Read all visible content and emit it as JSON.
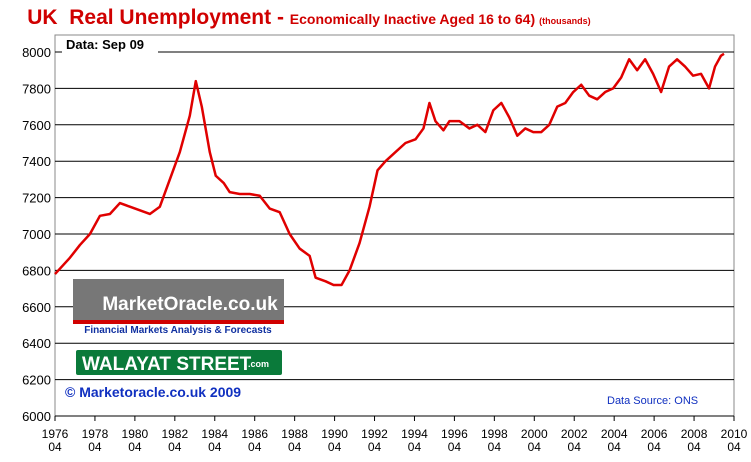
{
  "chart_data": {
    "type": "line",
    "title": "UK  Real Unemployment - ",
    "subtitle": "Economically Inactive Aged 16 to 64)",
    "unit_note": "(thousands)",
    "data_note": "Data: Sep 09",
    "copyright": "© Marketoracle.co.uk 2009",
    "source": "Data Source: ONS",
    "watermarks": [
      "MarketOracle.co.uk",
      "Financial Markets Analysis & Forecasts",
      "WALAYAT STREET",
      ".com"
    ],
    "x": [
      1976.25,
      1977,
      1977.5,
      1978,
      1978.5,
      1979,
      1979.5,
      1980,
      1980.5,
      1981,
      1981.5,
      1982,
      1982.5,
      1983,
      1983.3,
      1983.6,
      1984,
      1984.3,
      1984.7,
      1985,
      1985.5,
      1986,
      1986.5,
      1987,
      1987.5,
      1988,
      1988.5,
      1989,
      1989.3,
      1989.8,
      1990.2,
      1990.6,
      1991,
      1991.5,
      1992,
      1992.4,
      1992.8,
      1993.3,
      1993.8,
      1994.3,
      1994.7,
      1995,
      1995.3,
      1995.7,
      1996,
      1996.5,
      1997,
      1997.4,
      1997.8,
      1998.2,
      1998.6,
      1999,
      1999.4,
      1999.8,
      2000.2,
      2000.6,
      2001,
      2001.4,
      2001.8,
      2002.2,
      2002.6,
      2003,
      2003.4,
      2003.8,
      2004.2,
      2004.6,
      2005,
      2005.4,
      2005.8,
      2006.2,
      2006.6,
      2007,
      2007.4,
      2007.8,
      2008.2,
      2008.6,
      2009,
      2009.3,
      2009.6,
      2009.75
    ],
    "series": [
      {
        "name": "Economically Inactive",
        "color": "#e00000",
        "values": [
          6780,
          6870,
          6940,
          7000,
          7100,
          7110,
          7170,
          7150,
          7130,
          7110,
          7150,
          7300,
          7450,
          7650,
          7840,
          7700,
          7450,
          7320,
          7280,
          7230,
          7220,
          7220,
          7210,
          7140,
          7120,
          7000,
          6920,
          6880,
          6760,
          6740,
          6720,
          6720,
          6800,
          6950,
          7150,
          7350,
          7400,
          7450,
          7500,
          7520,
          7580,
          7720,
          7620,
          7570,
          7620,
          7620,
          7580,
          7600,
          7560,
          7680,
          7720,
          7640,
          7540,
          7580,
          7560,
          7560,
          7600,
          7700,
          7720,
          7780,
          7820,
          7760,
          7740,
          7780,
          7800,
          7860,
          7960,
          7900,
          7960,
          7880,
          7780,
          7920,
          7960,
          7920,
          7870,
          7880,
          7800,
          7920,
          7980,
          7990
        ]
      }
    ],
    "xlim": [
      1976.25,
      2010.25
    ],
    "xticks": [
      {
        "value": 1976.25,
        "label": "1976\n04"
      },
      {
        "value": 1978.25,
        "label": "1978\n04"
      },
      {
        "value": 1980.25,
        "label": "1980\n04"
      },
      {
        "value": 1982.25,
        "label": "1982\n04"
      },
      {
        "value": 1984.25,
        "label": "1984\n04"
      },
      {
        "value": 1986.25,
        "label": "1986\n04"
      },
      {
        "value": 1988.25,
        "label": "1988\n04"
      },
      {
        "value": 1990.25,
        "label": "1990\n04"
      },
      {
        "value": 1992.25,
        "label": "1992\n04"
      },
      {
        "value": 1994.25,
        "label": "1994\n04"
      },
      {
        "value": 1996.25,
        "label": "1996\n04"
      },
      {
        "value": 1998.25,
        "label": "1998\n04"
      },
      {
        "value": 2000.25,
        "label": "2000\n04"
      },
      {
        "value": 2002.25,
        "label": "2002\n04"
      },
      {
        "value": 2004.25,
        "label": "2004\n04"
      },
      {
        "value": 2006.25,
        "label": "2006\n04"
      },
      {
        "value": 2008.25,
        "label": "2008\n04"
      },
      {
        "value": 2010.25,
        "label": "2010\n04"
      }
    ],
    "ylim": [
      6000,
      8000
    ],
    "yticks": [
      6000,
      6200,
      6400,
      6600,
      6800,
      7000,
      7200,
      7400,
      7600,
      7800,
      8000
    ],
    "grid": true
  }
}
